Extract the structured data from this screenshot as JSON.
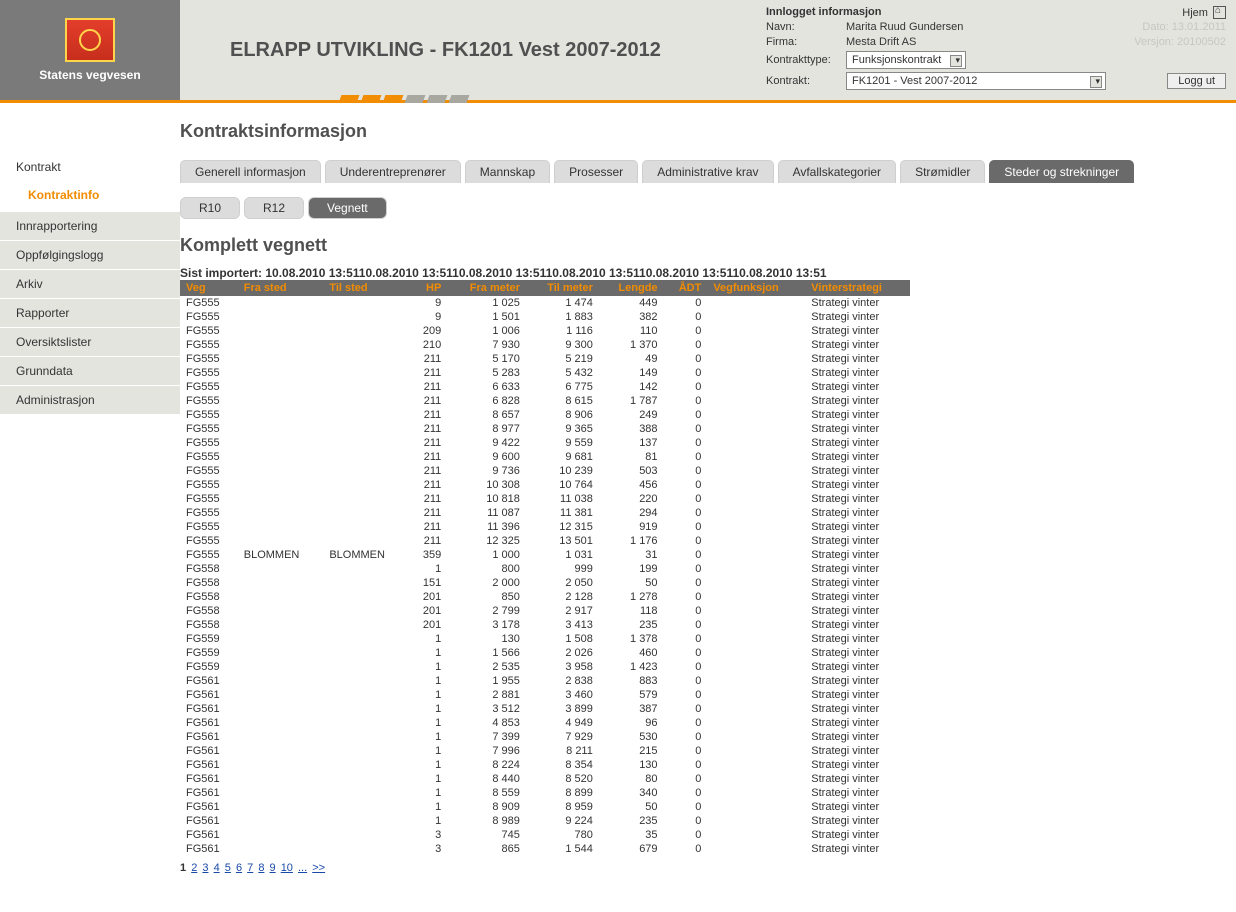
{
  "colors": {
    "accent_orange": "#f28c00",
    "header_grey": "#7a7a7a",
    "panel_bg": "#e4e4df",
    "tab_inactive": "#dcdcdc",
    "tab_active_bg": "#6a6a6a",
    "tab_active_fg": "#ffffff",
    "link_blue": "#1a4aa8"
  },
  "brand": {
    "name": "Statens vegvesen"
  },
  "page_title": "ELRAPP UTVIKLING - FK1201 Vest 2007-2012",
  "stripes": [
    "#f28c00",
    "#f28c00",
    "#f28c00",
    "#a8a8a0",
    "#a8a8a0",
    "#a8a8a0"
  ],
  "info": {
    "heading": "Innlogget informasjon",
    "labels": {
      "name": "Navn:",
      "firm": "Firma:",
      "contract_type": "Kontrakttype:",
      "contract": "Kontrakt:"
    },
    "name": "Marita Ruud Gundersen",
    "firm": "Mesta Drift AS",
    "contract_type_value": "Funksjonskontrakt",
    "contract_value": "FK1201 - Vest 2007-2012",
    "home_label": "Hjem",
    "date_label": "Dato:",
    "date_value": "13.01.2011",
    "version_label": "Versjon:",
    "version_value": "20100502",
    "logout": "Logg ut"
  },
  "sidebar": {
    "items": [
      {
        "label": "Kontrakt",
        "selected": true,
        "sub": "Kontraktinfo"
      },
      {
        "label": "Innrapportering"
      },
      {
        "label": "Oppfølgingslogg"
      },
      {
        "label": "Arkiv"
      },
      {
        "label": "Rapporter"
      },
      {
        "label": "Oversiktslister"
      },
      {
        "label": "Grunndata"
      },
      {
        "label": "Administrasjon"
      }
    ]
  },
  "section_title": "Kontraktsinformasjon",
  "tabs": [
    {
      "label": "Generell informasjon"
    },
    {
      "label": "Underentreprenører"
    },
    {
      "label": "Mannskap"
    },
    {
      "label": "Prosesser"
    },
    {
      "label": "Administrative krav"
    },
    {
      "label": "Avfallskategorier"
    },
    {
      "label": "Strømidler"
    },
    {
      "label": "Steder og strekninger",
      "active": true
    }
  ],
  "subtabs": [
    {
      "label": "R10"
    },
    {
      "label": "R12"
    },
    {
      "label": "Vegnett",
      "active": true
    }
  ],
  "sub_section_title": "Komplett vegnett",
  "import_prefix": "Sist importert: ",
  "import_stamp": "10.08.2010 13:51",
  "import_repeat": 6,
  "table": {
    "columns": [
      {
        "label": "Veg",
        "align": "left"
      },
      {
        "label": "Fra sted",
        "align": "left"
      },
      {
        "label": "Til sted",
        "align": "left"
      },
      {
        "label": "HP",
        "align": "right"
      },
      {
        "label": "Fra meter",
        "align": "right"
      },
      {
        "label": "Til meter",
        "align": "right"
      },
      {
        "label": "Lengde",
        "align": "right"
      },
      {
        "label": "ÅDT",
        "align": "right"
      },
      {
        "label": "Vegfunksjon",
        "align": "left"
      },
      {
        "label": "Vinterstrategi",
        "align": "left"
      }
    ],
    "rows": [
      [
        "FG555",
        "",
        "",
        "9",
        "1 025",
        "1 474",
        "449",
        "0",
        "",
        "Strategi vinter"
      ],
      [
        "FG555",
        "",
        "",
        "9",
        "1 501",
        "1 883",
        "382",
        "0",
        "",
        "Strategi vinter"
      ],
      [
        "FG555",
        "",
        "",
        "209",
        "1 006",
        "1 116",
        "110",
        "0",
        "",
        "Strategi vinter"
      ],
      [
        "FG555",
        "",
        "",
        "210",
        "7 930",
        "9 300",
        "1 370",
        "0",
        "",
        "Strategi vinter"
      ],
      [
        "FG555",
        "",
        "",
        "211",
        "5 170",
        "5 219",
        "49",
        "0",
        "",
        "Strategi vinter"
      ],
      [
        "FG555",
        "",
        "",
        "211",
        "5 283",
        "5 432",
        "149",
        "0",
        "",
        "Strategi vinter"
      ],
      [
        "FG555",
        "",
        "",
        "211",
        "6 633",
        "6 775",
        "142",
        "0",
        "",
        "Strategi vinter"
      ],
      [
        "FG555",
        "",
        "",
        "211",
        "6 828",
        "8 615",
        "1 787",
        "0",
        "",
        "Strategi vinter"
      ],
      [
        "FG555",
        "",
        "",
        "211",
        "8 657",
        "8 906",
        "249",
        "0",
        "",
        "Strategi vinter"
      ],
      [
        "FG555",
        "",
        "",
        "211",
        "8 977",
        "9 365",
        "388",
        "0",
        "",
        "Strategi vinter"
      ],
      [
        "FG555",
        "",
        "",
        "211",
        "9 422",
        "9 559",
        "137",
        "0",
        "",
        "Strategi vinter"
      ],
      [
        "FG555",
        "",
        "",
        "211",
        "9 600",
        "9 681",
        "81",
        "0",
        "",
        "Strategi vinter"
      ],
      [
        "FG555",
        "",
        "",
        "211",
        "9 736",
        "10 239",
        "503",
        "0",
        "",
        "Strategi vinter"
      ],
      [
        "FG555",
        "",
        "",
        "211",
        "10 308",
        "10 764",
        "456",
        "0",
        "",
        "Strategi vinter"
      ],
      [
        "FG555",
        "",
        "",
        "211",
        "10 818",
        "11 038",
        "220",
        "0",
        "",
        "Strategi vinter"
      ],
      [
        "FG555",
        "",
        "",
        "211",
        "11 087",
        "11 381",
        "294",
        "0",
        "",
        "Strategi vinter"
      ],
      [
        "FG555",
        "",
        "",
        "211",
        "11 396",
        "12 315",
        "919",
        "0",
        "",
        "Strategi vinter"
      ],
      [
        "FG555",
        "",
        "",
        "211",
        "12 325",
        "13 501",
        "1 176",
        "0",
        "",
        "Strategi vinter"
      ],
      [
        "FG555",
        "BLOMMEN",
        "BLOMMEN",
        "359",
        "1 000",
        "1 031",
        "31",
        "0",
        "",
        "Strategi vinter"
      ],
      [
        "FG558",
        "",
        "",
        "1",
        "800",
        "999",
        "199",
        "0",
        "",
        "Strategi vinter"
      ],
      [
        "FG558",
        "",
        "",
        "151",
        "2 000",
        "2 050",
        "50",
        "0",
        "",
        "Strategi vinter"
      ],
      [
        "FG558",
        "",
        "",
        "201",
        "850",
        "2 128",
        "1 278",
        "0",
        "",
        "Strategi vinter"
      ],
      [
        "FG558",
        "",
        "",
        "201",
        "2 799",
        "2 917",
        "118",
        "0",
        "",
        "Strategi vinter"
      ],
      [
        "FG558",
        "",
        "",
        "201",
        "3 178",
        "3 413",
        "235",
        "0",
        "",
        "Strategi vinter"
      ],
      [
        "FG559",
        "",
        "",
        "1",
        "130",
        "1 508",
        "1 378",
        "0",
        "",
        "Strategi vinter"
      ],
      [
        "FG559",
        "",
        "",
        "1",
        "1 566",
        "2 026",
        "460",
        "0",
        "",
        "Strategi vinter"
      ],
      [
        "FG559",
        "",
        "",
        "1",
        "2 535",
        "3 958",
        "1 423",
        "0",
        "",
        "Strategi vinter"
      ],
      [
        "FG561",
        "",
        "",
        "1",
        "1 955",
        "2 838",
        "883",
        "0",
        "",
        "Strategi vinter"
      ],
      [
        "FG561",
        "",
        "",
        "1",
        "2 881",
        "3 460",
        "579",
        "0",
        "",
        "Strategi vinter"
      ],
      [
        "FG561",
        "",
        "",
        "1",
        "3 512",
        "3 899",
        "387",
        "0",
        "",
        "Strategi vinter"
      ],
      [
        "FG561",
        "",
        "",
        "1",
        "4 853",
        "4 949",
        "96",
        "0",
        "",
        "Strategi vinter"
      ],
      [
        "FG561",
        "",
        "",
        "1",
        "7 399",
        "7 929",
        "530",
        "0",
        "",
        "Strategi vinter"
      ],
      [
        "FG561",
        "",
        "",
        "1",
        "7 996",
        "8 211",
        "215",
        "0",
        "",
        "Strategi vinter"
      ],
      [
        "FG561",
        "",
        "",
        "1",
        "8 224",
        "8 354",
        "130",
        "0",
        "",
        "Strategi vinter"
      ],
      [
        "FG561",
        "",
        "",
        "1",
        "8 440",
        "8 520",
        "80",
        "0",
        "",
        "Strategi vinter"
      ],
      [
        "FG561",
        "",
        "",
        "1",
        "8 559",
        "8 899",
        "340",
        "0",
        "",
        "Strategi vinter"
      ],
      [
        "FG561",
        "",
        "",
        "1",
        "8 909",
        "8 959",
        "50",
        "0",
        "",
        "Strategi vinter"
      ],
      [
        "FG561",
        "",
        "",
        "1",
        "8 989",
        "9 224",
        "235",
        "0",
        "",
        "Strategi vinter"
      ],
      [
        "FG561",
        "",
        "",
        "3",
        "745",
        "780",
        "35",
        "0",
        "",
        "Strategi vinter"
      ],
      [
        "FG561",
        "",
        "",
        "3",
        "865",
        "1 544",
        "679",
        "0",
        "",
        "Strategi vinter"
      ]
    ]
  },
  "pager": {
    "pages": [
      "1",
      "2",
      "3",
      "4",
      "5",
      "6",
      "7",
      "8",
      "9",
      "10"
    ],
    "current": "1",
    "more": "...",
    "next": ">>"
  }
}
